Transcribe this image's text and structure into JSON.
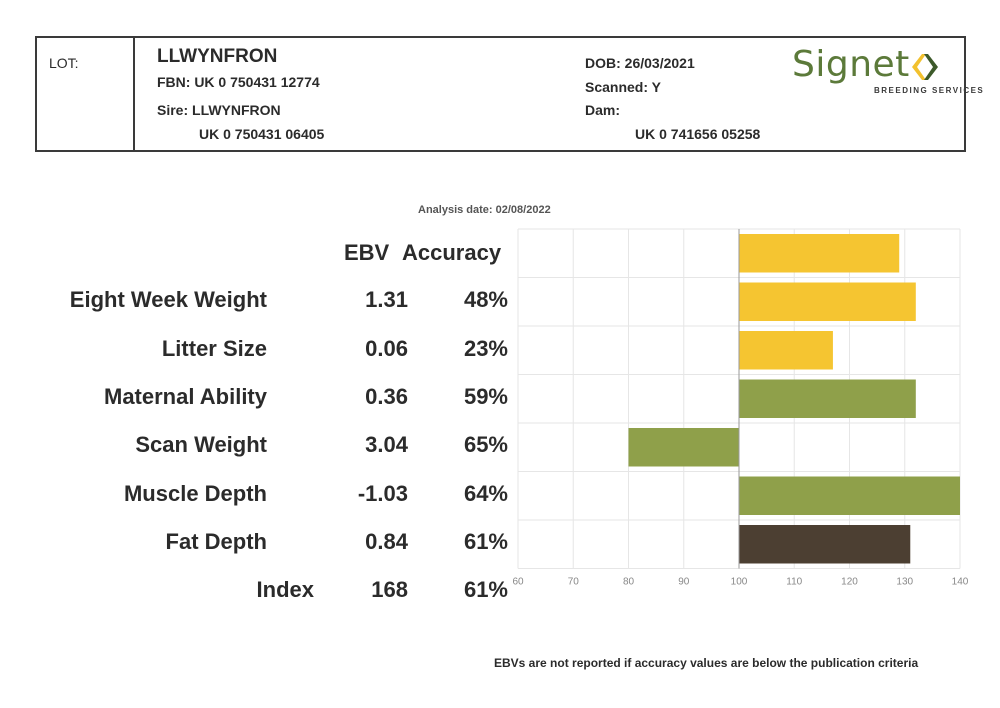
{
  "header": {
    "lot_label": "LOT:",
    "animal_name": "LLWYNFRON",
    "fbn": "FBN: UK 0 750431 12774",
    "sire": "Sire: LLWYNFRON",
    "sire_id": "UK 0 750431 06405",
    "dob": "DOB: 26/03/2021",
    "scanned": "Scanned: Y",
    "dam": "Dam:",
    "dam_id": "UK 0 741656 05258"
  },
  "logo": {
    "text": "Signet",
    "subtext": "BREEDING SERVICES",
    "brand_green": "#5c7a3a",
    "brand_yellow": "#f2c12e",
    "brand_dark_green": "#3d5a2a"
  },
  "analysis_date": "Analysis date: 02/08/2022",
  "columns": {
    "ebv": "EBV",
    "accuracy": "Accuracy"
  },
  "rows": [
    {
      "trait": "Eight Week Weight",
      "ebv": "1.31",
      "accuracy": "48%"
    },
    {
      "trait": "Litter Size",
      "ebv": "0.06",
      "accuracy": "23%"
    },
    {
      "trait": "Maternal Ability",
      "ebv": "0.36",
      "accuracy": "59%"
    },
    {
      "trait": "Scan Weight",
      "ebv": "3.04",
      "accuracy": "65%"
    },
    {
      "trait": "Muscle Depth",
      "ebv": "-1.03",
      "accuracy": "64%"
    },
    {
      "trait": "Fat Depth",
      "ebv": "0.84",
      "accuracy": "61%"
    },
    {
      "trait": "Index",
      "ebv": "168",
      "accuracy": "61%"
    }
  ],
  "chart_data": {
    "type": "bar",
    "orientation": "horizontal",
    "baseline": 100,
    "xlim": [
      60,
      140
    ],
    "xticks": [
      60,
      70,
      80,
      90,
      100,
      110,
      120,
      130,
      140
    ],
    "grid": true,
    "categories": [
      "Eight Week Weight",
      "Litter Size",
      "Maternal Ability",
      "Scan Weight",
      "Muscle Depth",
      "Fat Depth",
      "Index"
    ],
    "values": [
      129,
      132,
      117,
      132,
      80,
      140,
      131
    ],
    "colors": [
      "#f5c531",
      "#f5c531",
      "#f5c531",
      "#8fa04a",
      "#8fa04a",
      "#8fa04a",
      "#4c3f32"
    ]
  },
  "footnote": "EBVs are not reported if accuracy values are below the publication criteria"
}
